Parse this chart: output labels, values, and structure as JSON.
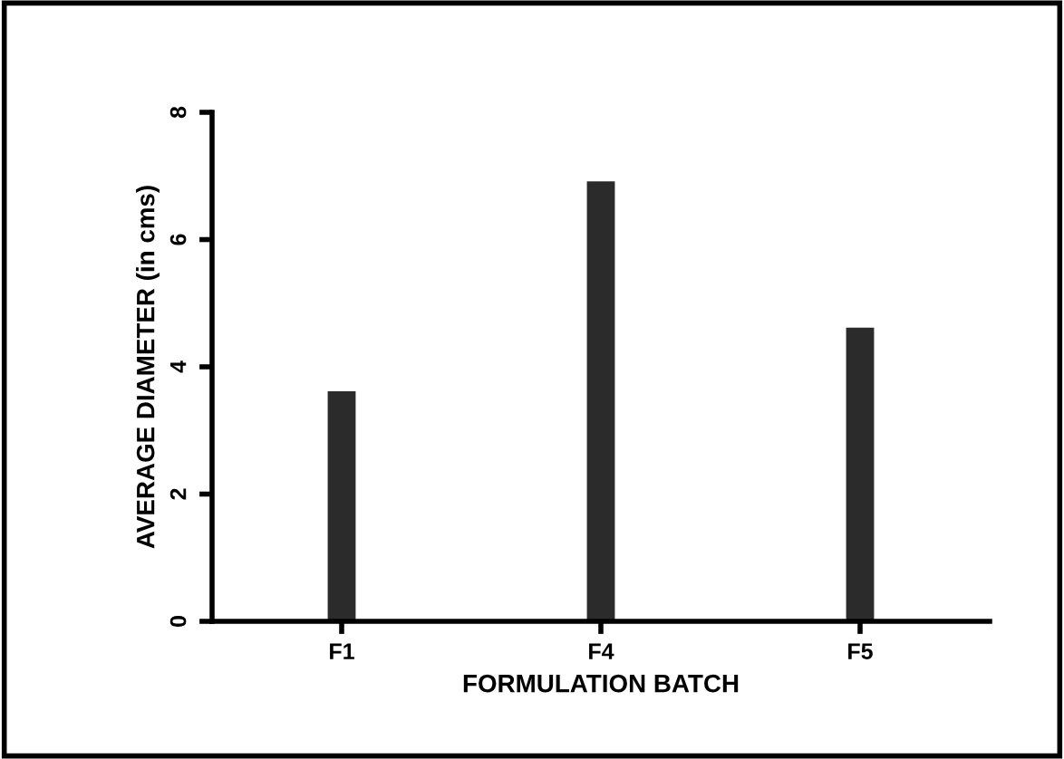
{
  "chart_data": {
    "type": "bar",
    "xlabel": "FORMULATION BATCH",
    "ylabel": "AVERAGE DIAMETER (in cms)",
    "categories": [
      "F1",
      "F4",
      "F5"
    ],
    "values": [
      3.6,
      6.9,
      4.6
    ],
    "color": "#2b2b2b",
    "ylim": [
      0,
      8
    ],
    "yticks": [
      0,
      2,
      4,
      6,
      8
    ],
    "grid": false
  }
}
